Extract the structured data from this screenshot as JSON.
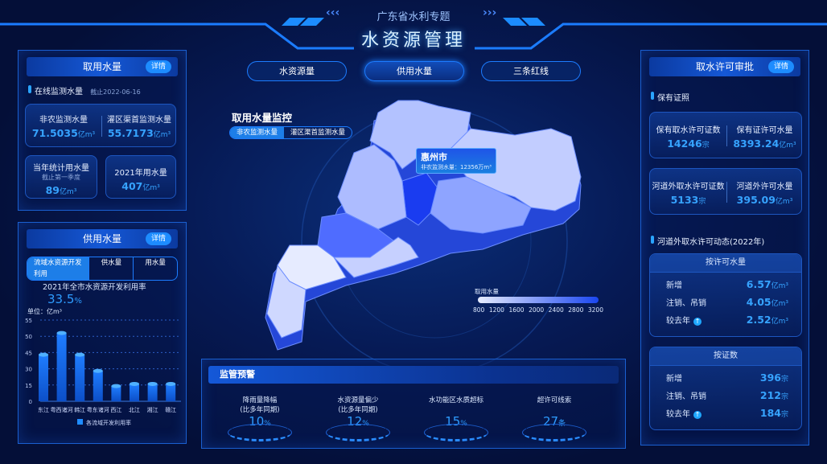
{
  "header": {
    "subtitle": "广东省水利专题",
    "title": "水资源管理"
  },
  "nav": [
    {
      "label": "水资源量",
      "active": false
    },
    {
      "label": "供用水量",
      "active": true
    },
    {
      "label": "三条红线",
      "active": false
    }
  ],
  "left_top": {
    "title": "取用水量",
    "detail": "详情",
    "section": "在线监测水量",
    "as_of": "截止2022-06-16",
    "metrics": [
      {
        "label": "非农监测水量",
        "value": "71.5035",
        "unit": "亿m³"
      },
      {
        "label": "灌区渠首监测水量",
        "value": "55.7173",
        "unit": "亿m³"
      }
    ],
    "year_stat": {
      "label": "当年统计用水量",
      "note": "截止第一季度",
      "value": "89",
      "unit": "亿m³"
    },
    "year_2021": {
      "label": "2021年用水量",
      "value": "407",
      "unit": "亿m³"
    }
  },
  "left_bottom": {
    "title": "供用水量",
    "detail": "详情",
    "tabs": [
      "流域水资源开发利用",
      "供水量",
      "用水量"
    ],
    "rate_label": "2021年全市水资源开发利用率",
    "rate_value": "33.5",
    "rate_unit": "%"
  },
  "chart_data": {
    "type": "bar",
    "ylabel": "单位：亿m³",
    "yticks": [
      0,
      15,
      30,
      45,
      50,
      55
    ],
    "ylim": [
      0,
      55
    ],
    "grid": true,
    "legend": "bottom",
    "categories": [
      "东江",
      "粤西诸河",
      "韩江",
      "粤东诸河",
      "西江",
      "北江",
      "湘江",
      "赣江"
    ],
    "series": [
      {
        "name": "各流域开发利用率",
        "values": [
          43,
          51,
          43,
          28,
          14,
          16,
          16,
          16
        ]
      }
    ]
  },
  "map": {
    "title": "取用水量监控",
    "tabs": [
      "非农监测水量",
      "灌区渠首监测水量"
    ],
    "tooltip": {
      "city": "惠州市",
      "label": "非农监测水量：",
      "value": "12356",
      "unit": "万m³"
    },
    "legend": {
      "title": "取用水量",
      "ticks": [
        "800",
        "1200",
        "1600",
        "2000",
        "2400",
        "2800",
        "3200"
      ],
      "colors": [
        "#e6ecff",
        "#1a46f0"
      ]
    }
  },
  "warning": {
    "title": "监管预警",
    "items": [
      {
        "label": "降雨量降幅",
        "note": "(比多年同期)",
        "value": "10",
        "unit": "%"
      },
      {
        "label": "水资源量偏少",
        "note": "(比多年同期)",
        "value": "12",
        "unit": "%"
      },
      {
        "label": "水功能区水质超标",
        "note": "",
        "value": "15",
        "unit": "%"
      },
      {
        "label": "超许可线索",
        "note": "",
        "value": "27",
        "unit": "条"
      }
    ]
  },
  "right": {
    "title": "取水许可审批",
    "detail": "详情",
    "section1": "保有证照",
    "cards": [
      [
        {
          "label": "保有取水许可证数",
          "value": "14246",
          "unit": "宗"
        },
        {
          "label": "保有证许可水量",
          "value": "8393.24",
          "unit": "亿m³"
        }
      ],
      [
        {
          "label": "河道外取水许可证数",
          "value": "5133",
          "unit": "宗"
        },
        {
          "label": "河道外许可水量",
          "value": "395.09",
          "unit": "亿m³"
        }
      ]
    ],
    "section2": "河道外取水许可动态(2022年)",
    "by_volume": {
      "title": "按许可水量",
      "rows": [
        {
          "label": "新增",
          "value": "6.57",
          "unit": "亿m³"
        },
        {
          "label": "注销、吊销",
          "value": "4.05",
          "unit": "亿m³"
        },
        {
          "label": "较去年",
          "value": "2.52",
          "unit": "亿m³",
          "trend": "up"
        }
      ]
    },
    "by_count": {
      "title": "按证数",
      "rows": [
        {
          "label": "新增",
          "value": "396",
          "unit": "宗"
        },
        {
          "label": "注销、吊销",
          "value": "212",
          "unit": "宗"
        },
        {
          "label": "较去年",
          "value": "184",
          "unit": "宗",
          "trend": "up"
        }
      ]
    }
  }
}
